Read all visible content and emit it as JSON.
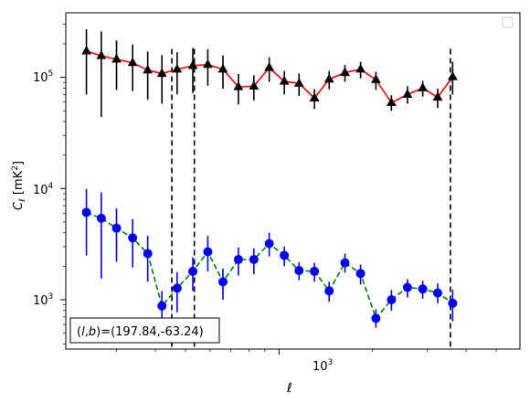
{
  "chart_data": {
    "type": "scatter",
    "title": "",
    "xlabel": "ℓ",
    "ylabel_main": "C",
    "ylabel_sub": "ℓ",
    "ylabel_unit_open": "  [mK",
    "ylabel_unit_sup": "2",
    "ylabel_unit_close": "]",
    "x_scale": "log",
    "y_scale": "log",
    "xlim": [
      206,
      5960
    ],
    "ylim": [
      360,
      380000
    ],
    "x_tick_labels": [
      {
        "value": 1000,
        "base": "10",
        "exp": "3"
      }
    ],
    "y_tick_labels": [
      {
        "value": 1000,
        "base": "10",
        "exp": "3"
      },
      {
        "value": 10000,
        "base": "10",
        "exp": "4"
      },
      {
        "value": 100000,
        "base": "10",
        "exp": "5"
      }
    ],
    "vertical_lines": [
      {
        "x": 452,
        "y_top": 180000
      },
      {
        "x": 534,
        "y_top": 180000
      },
      {
        "x": 3560,
        "y_top": 180000
      }
    ],
    "annotation": "(l,b)=(197.84,-63.24)",
    "annotation_prefix": "(",
    "annotation_l": "l",
    "annotation_mid": ",",
    "annotation_b": "b",
    "annotation_suffix": ")=(197.84,-63.24)",
    "legend": "top-right, empty",
    "series": [
      {
        "marker": "triangle",
        "line_color": "#ff0000",
        "marker_color": "#000000",
        "line_style": "solid",
        "points": [
          {
            "x": 240,
            "y": 172000,
            "lo": 70000,
            "hi": 270000
          },
          {
            "x": 268,
            "y": 156000,
            "lo": 44000,
            "hi": 258000
          },
          {
            "x": 300,
            "y": 145000,
            "lo": 77000,
            "hi": 214000
          },
          {
            "x": 338,
            "y": 135000,
            "lo": 75000,
            "hi": 197000
          },
          {
            "x": 378,
            "y": 116000,
            "lo": 63000,
            "hi": 170000
          },
          {
            "x": 420,
            "y": 108000,
            "lo": 58000,
            "hi": 158000
          },
          {
            "x": 470,
            "y": 118000,
            "lo": 70000,
            "hi": 168000
          },
          {
            "x": 528,
            "y": 127000,
            "lo": 72000,
            "hi": 183000
          },
          {
            "x": 590,
            "y": 130000,
            "lo": 84000,
            "hi": 178000
          },
          {
            "x": 660,
            "y": 118000,
            "lo": 79000,
            "hi": 157000
          },
          {
            "x": 740,
            "y": 82000,
            "lo": 57000,
            "hi": 107000
          },
          {
            "x": 830,
            "y": 83000,
            "lo": 62000,
            "hi": 104000
          },
          {
            "x": 930,
            "y": 122000,
            "lo": 91000,
            "hi": 151000
          },
          {
            "x": 1040,
            "y": 92000,
            "lo": 70000,
            "hi": 114000
          },
          {
            "x": 1160,
            "y": 88000,
            "lo": 68000,
            "hi": 108000
          },
          {
            "x": 1300,
            "y": 65000,
            "lo": 52000,
            "hi": 78000
          },
          {
            "x": 1450,
            "y": 96000,
            "lo": 78000,
            "hi": 114000
          },
          {
            "x": 1630,
            "y": 110000,
            "lo": 91000,
            "hi": 129000
          },
          {
            "x": 1830,
            "y": 118000,
            "lo": 98000,
            "hi": 138000
          },
          {
            "x": 2050,
            "y": 95000,
            "lo": 77000,
            "hi": 112000
          },
          {
            "x": 2300,
            "y": 59000,
            "lo": 50000,
            "hi": 69000
          },
          {
            "x": 2590,
            "y": 70000,
            "lo": 58000,
            "hi": 83000
          },
          {
            "x": 2900,
            "y": 80000,
            "lo": 67000,
            "hi": 93000
          },
          {
            "x": 3240,
            "y": 66000,
            "lo": 53000,
            "hi": 79000
          },
          {
            "x": 3620,
            "y": 101000,
            "lo": 70000,
            "hi": 138000
          }
        ]
      },
      {
        "marker": "circle",
        "line_color": "#008000",
        "marker_color": "#0000ff",
        "line_style": "dashed",
        "points": [
          {
            "x": 240,
            "y": 6100,
            "lo": 2500,
            "hi": 9900
          },
          {
            "x": 268,
            "y": 5400,
            "lo": 1550,
            "hi": 9200
          },
          {
            "x": 300,
            "y": 4400,
            "lo": 2200,
            "hi": 6600
          },
          {
            "x": 338,
            "y": 3600,
            "lo": 1950,
            "hi": 5300
          },
          {
            "x": 378,
            "y": 2600,
            "lo": 1450,
            "hi": 3750
          },
          {
            "x": 420,
            "y": 880,
            "lo": 570,
            "hi": 1190
          },
          {
            "x": 470,
            "y": 1270,
            "lo": 770,
            "hi": 1770
          },
          {
            "x": 528,
            "y": 1800,
            "lo": 1200,
            "hi": 2400
          },
          {
            "x": 590,
            "y": 2700,
            "lo": 1800,
            "hi": 3750
          },
          {
            "x": 660,
            "y": 1450,
            "lo": 1000,
            "hi": 1900
          },
          {
            "x": 740,
            "y": 2300,
            "lo": 1650,
            "hi": 2950
          },
          {
            "x": 830,
            "y": 2300,
            "lo": 1700,
            "hi": 2900
          },
          {
            "x": 930,
            "y": 3200,
            "lo": 2450,
            "hi": 4000
          },
          {
            "x": 1040,
            "y": 2500,
            "lo": 2000,
            "hi": 3000
          },
          {
            "x": 1160,
            "y": 1830,
            "lo": 1500,
            "hi": 2180
          },
          {
            "x": 1300,
            "y": 1800,
            "lo": 1450,
            "hi": 2150
          },
          {
            "x": 1450,
            "y": 1200,
            "lo": 960,
            "hi": 1450
          },
          {
            "x": 1630,
            "y": 2150,
            "lo": 1750,
            "hi": 2600
          },
          {
            "x": 1830,
            "y": 1720,
            "lo": 1370,
            "hi": 2070
          },
          {
            "x": 2050,
            "y": 680,
            "lo": 560,
            "hi": 820
          },
          {
            "x": 2300,
            "y": 1000,
            "lo": 800,
            "hi": 1220
          },
          {
            "x": 2590,
            "y": 1290,
            "lo": 1050,
            "hi": 1530
          },
          {
            "x": 2900,
            "y": 1250,
            "lo": 1020,
            "hi": 1480
          },
          {
            "x": 3240,
            "y": 1150,
            "lo": 930,
            "hi": 1400
          },
          {
            "x": 3620,
            "y": 930,
            "lo": 640,
            "hi": 1230
          }
        ]
      }
    ]
  }
}
